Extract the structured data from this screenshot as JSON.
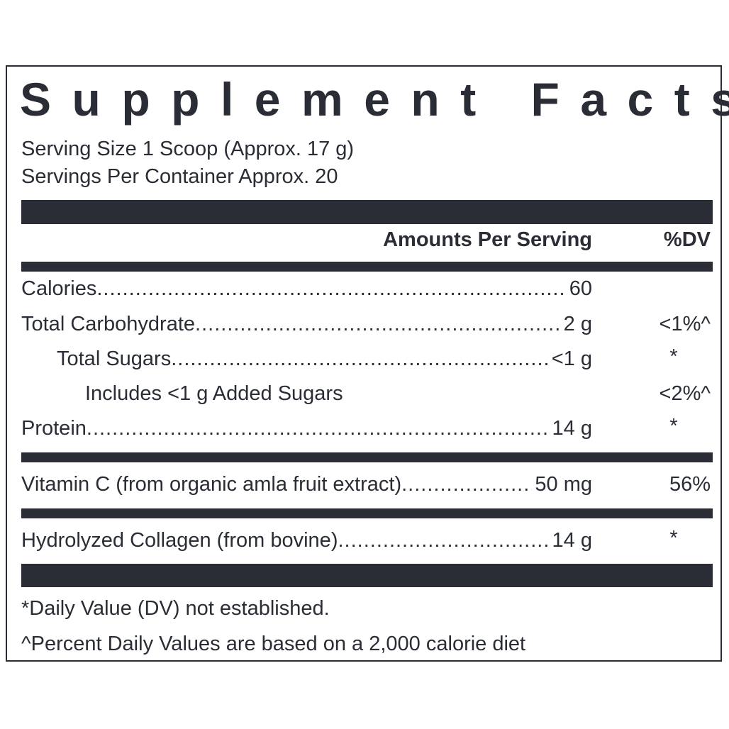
{
  "title": "Supplement Facts",
  "serving_size": "Serving Size 1 Scoop (Approx. 17 g)",
  "servings_per_container": "Servings Per Container Approx. 20",
  "header": {
    "amounts": "Amounts Per Serving",
    "dv": "%DV"
  },
  "rows": [
    {
      "label": "Calories ",
      "value": "60",
      "dv": ""
    },
    {
      "label": "Total Carbohydrate ",
      "value": "2 g",
      "dv": "<1%^"
    },
    {
      "label": "Total Sugars",
      "value": "<1 g",
      "dv": "*"
    },
    {
      "label": "Includes <1 g Added Sugars",
      "value": "",
      "dv": "<2%^"
    },
    {
      "label": "Protein",
      "value": "14 g",
      "dv": "*"
    },
    {
      "label": "Vitamin C (from organic amla fruit extract)",
      "value": "50 mg",
      "dv": "56%"
    },
    {
      "label": "Hydrolyzed Collagen (from bovine) ",
      "value": "14 g",
      "dv": "*"
    }
  ],
  "footnotes": [
    "*Daily Value (DV) not established.",
    "^Percent Daily Values are based on a 2,000 calorie diet"
  ],
  "colors": {
    "ink": "#2a2d35"
  }
}
